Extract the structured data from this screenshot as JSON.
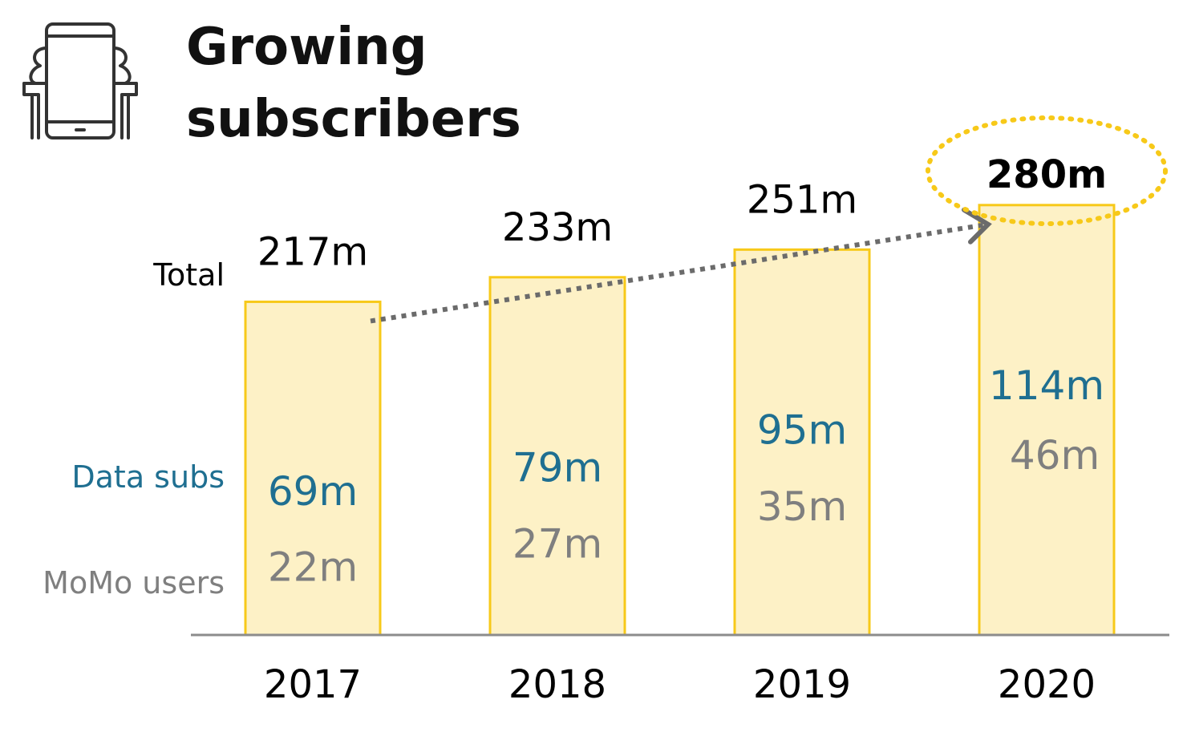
{
  "colors": {
    "bar_fill": "#fdf1c6",
    "bar_stroke": "#f7c919",
    "highlight_ring": "#f7c919",
    "total_text": "#000000",
    "data_text": "#1f6f91",
    "momo_text": "#7f7f7f",
    "trend_arrow": "#6b6b6b",
    "baseline": "#8c8c8c",
    "icon_stroke": "#333333"
  },
  "header": {
    "icon": "smartphone-hands-icon",
    "title_line1": "Growing",
    "title_line2": "subscribers"
  },
  "chart_data": {
    "type": "bar",
    "categories": [
      "2017",
      "2018",
      "2019",
      "2020"
    ],
    "row_labels": {
      "total": "Total",
      "data": "Data subs",
      "momo": "MoMo users"
    },
    "series": [
      {
        "name": "Total",
        "values": [
          217,
          233,
          251,
          280
        ],
        "labels": [
          "217m",
          "233m",
          "251m",
          "280m"
        ]
      },
      {
        "name": "Data subs",
        "values": [
          69,
          79,
          95,
          114
        ],
        "labels": [
          "69m",
          "79m",
          "95m",
          "114m"
        ]
      },
      {
        "name": "MoMo users",
        "values": [
          22,
          27,
          35,
          46
        ],
        "labels": [
          "22m",
          "27m",
          "35m",
          "46m"
        ]
      }
    ],
    "highlight_category": "2020",
    "trend_arrow": {
      "from": "2017",
      "to": "2020"
    },
    "legend": "left-side row labels",
    "grid": false
  }
}
